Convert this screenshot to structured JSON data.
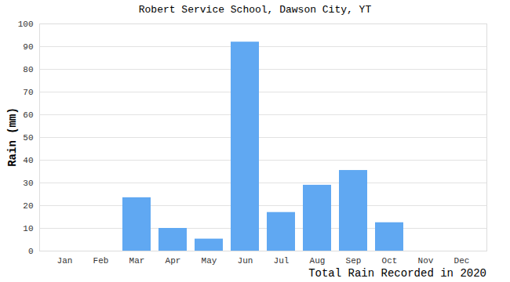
{
  "chart_data": {
    "type": "bar",
    "title": "Robert Service School, Dawson City, YT",
    "caption": "Total Rain Recorded in 2020",
    "y_label": "Rain (mm)",
    "categories": [
      "Jan",
      "Feb",
      "Mar",
      "Apr",
      "May",
      "Jun",
      "Jul",
      "Aug",
      "Sep",
      "Oct",
      "Nov",
      "Dec"
    ],
    "values": [
      0,
      0,
      23.5,
      10,
      5.3,
      92,
      17,
      29,
      35.5,
      12.5,
      0,
      0
    ],
    "color": "#60a8f2",
    "ylim": [
      0,
      100
    ],
    "yticks": [
      0,
      10,
      20,
      30,
      40,
      50,
      60,
      70,
      80,
      90,
      100
    ],
    "grid": true
  }
}
